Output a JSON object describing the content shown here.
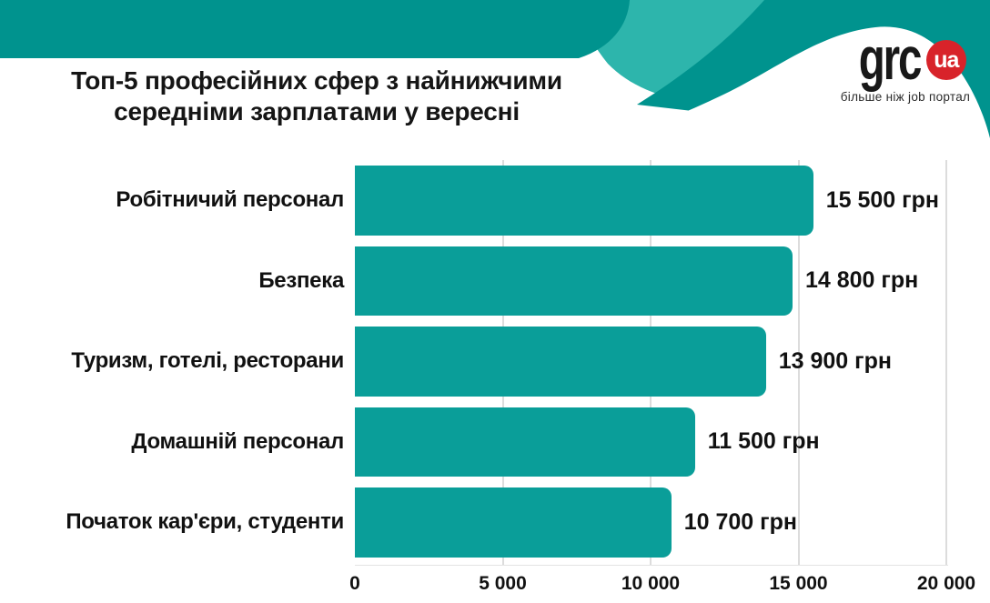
{
  "header": {
    "title_line1": "Топ-5 професійних сфер з найнижчими",
    "title_line2": "середніми зарплатами у вересні"
  },
  "logo": {
    "brand": "grc",
    "badge": "ua",
    "tagline": "більше ніж job портал"
  },
  "chart_data": {
    "type": "bar",
    "orientation": "horizontal",
    "title": "Топ-5 професійних сфер з найнижчими середніми зарплатами у вересні",
    "categories": [
      "Робітничий персонал",
      "Безпека",
      "Туризм, готелі, ресторани",
      "Домашній персонал",
      "Початок кар'єри, студенти"
    ],
    "values": [
      15500,
      14800,
      13900,
      11500,
      10700
    ],
    "value_labels": [
      "15 500 грн",
      "14 800 грн",
      "13 900 грн",
      "11 500 грн",
      "10 700 грн"
    ],
    "unit": "грн",
    "xlim": [
      0,
      20000
    ],
    "xticks": [
      0,
      5000,
      10000,
      15000,
      20000
    ],
    "xtick_labels": [
      "0",
      "5 000",
      "10 000",
      "15 000",
      "20 000"
    ],
    "grid": true,
    "legend": false
  },
  "colors": {
    "bar": "#0a9e99",
    "teal_dark": "#00938e",
    "teal_light": "#2db5ac",
    "badge_red": "#d8232a",
    "grid": "#dcdcdc",
    "text": "#111111"
  }
}
